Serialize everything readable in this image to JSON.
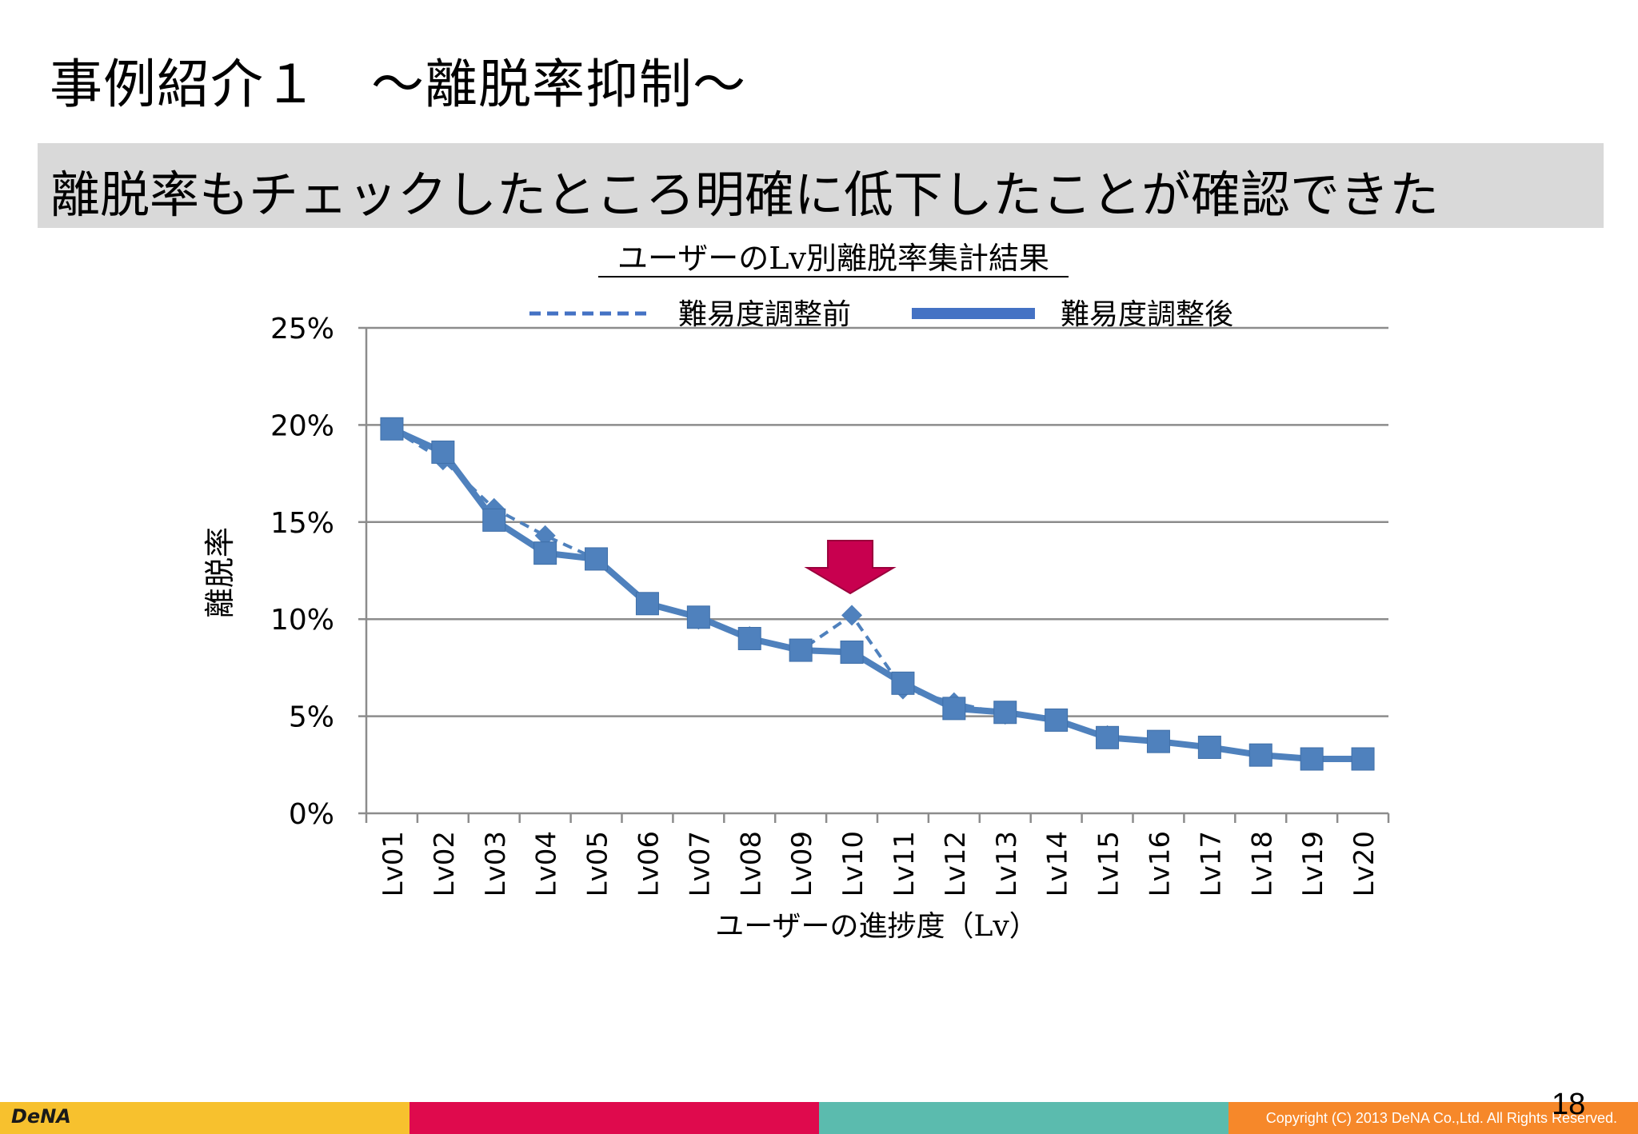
{
  "slide": {
    "title": "事例紹介１　〜離脱率抑制〜",
    "headline": "離脱率もチェックしたところ明確に低下したことが確認できた",
    "page_number": "18",
    "copyright": "Copyright (C) 2013 DeNA Co.,Ltd. All Rights Reserved.",
    "logo": "DeNA"
  },
  "colors": {
    "series": "#4f81bd",
    "arrow": "#c8004f",
    "grid": "#8c8c8c",
    "footer": [
      "#f7c12e",
      "#df0a4d",
      "#5bbbae",
      "#f6882a"
    ]
  },
  "chart_data": {
    "type": "line",
    "title": "ユーザーのLv別離脱率集計結果",
    "xlabel": "ユーザーの進捗度（Lv）",
    "ylabel": "離脱率",
    "categories": [
      "Lv01",
      "Lv02",
      "Lv03",
      "Lv04",
      "Lv05",
      "Lv06",
      "Lv07",
      "Lv08",
      "Lv09",
      "Lv10",
      "Lv11",
      "Lv12",
      "Lv13",
      "Lv14",
      "Lv15",
      "Lv16",
      "Lv17",
      "Lv18",
      "Lv19",
      "Lv20"
    ],
    "ylim": [
      0,
      25
    ],
    "yticks": [
      "0%",
      "5%",
      "10%",
      "15%",
      "20%",
      "25%"
    ],
    "grid": true,
    "legend_position": "top",
    "series": [
      {
        "name": "難易度調整前",
        "style": "dashed",
        "marker": "diamond",
        "values": [
          19.8,
          18.2,
          15.7,
          14.3,
          13.1,
          10.8,
          10.0,
          9.1,
          8.4,
          10.2,
          6.4,
          5.7,
          5.1,
          4.8,
          4.0,
          3.7,
          3.4,
          3.0,
          2.8,
          2.8
        ]
      },
      {
        "name": "難易度調整後",
        "style": "solid",
        "marker": "square",
        "values": [
          19.8,
          18.6,
          15.1,
          13.4,
          13.1,
          10.8,
          10.1,
          9.0,
          8.4,
          8.3,
          6.7,
          5.4,
          5.2,
          4.8,
          3.9,
          3.7,
          3.4,
          3.0,
          2.8,
          2.8
        ]
      }
    ],
    "annotation": {
      "type": "down-arrow",
      "category": "Lv10"
    }
  }
}
